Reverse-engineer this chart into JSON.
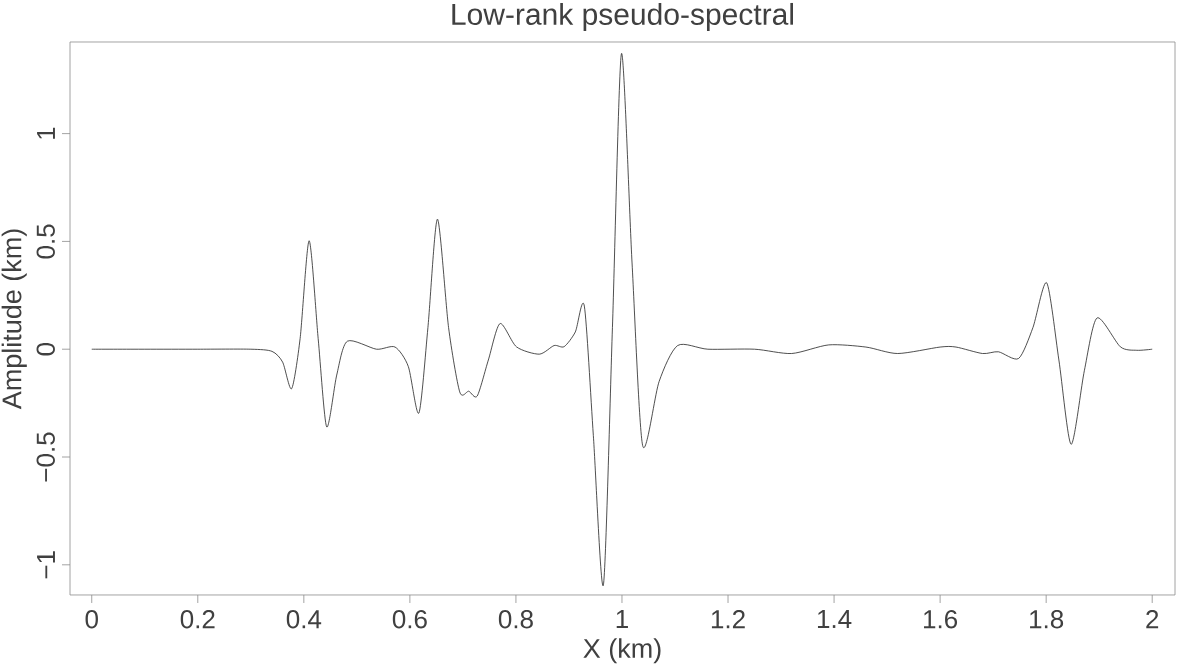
{
  "chart_data": {
    "type": "line",
    "title": "Low-rank pseudo-spectral",
    "xlabel": "X (km)",
    "ylabel": "Amplitude (km)",
    "color": "#222222",
    "marker": "none",
    "line_style": "solid",
    "xlim": [
      -0.041,
      2.043
    ],
    "ylim": [
      -1.14,
      1.425
    ],
    "xticks": [
      0,
      0.2,
      0.4,
      0.6,
      0.8,
      1,
      1.2,
      1.4,
      1.6,
      1.8,
      2
    ],
    "yticks": [
      {
        "value": -1,
        "label": "−1"
      },
      {
        "value": -0.5,
        "label": "−0.5"
      },
      0,
      0.5,
      1
    ],
    "x": [
      0,
      0.1,
      0.2,
      0.3,
      0.34,
      0.36,
      0.377,
      0.393,
      0.41,
      0.427,
      0.443,
      0.462,
      0.482,
      0.537,
      0.572,
      0.597,
      0.617,
      0.634,
      0.652,
      0.673,
      0.694,
      0.711,
      0.727,
      0.748,
      0.77,
      0.801,
      0.844,
      0.872,
      0.891,
      0.912,
      0.929,
      0.946,
      0.965,
      0.982,
      0.999,
      1.019,
      1.039,
      1.07,
      1.105,
      1.162,
      1.25,
      1.32,
      1.39,
      1.46,
      1.52,
      1.6,
      1.63,
      1.68,
      1.71,
      1.748,
      1.775,
      1.801,
      1.824,
      1.847,
      1.872,
      1.896,
      1.94,
      1.971,
      2.0
    ],
    "values": [
      0,
      0,
      0,
      0,
      -0.01,
      -0.06,
      -0.183,
      0.05,
      0.503,
      0.05,
      -0.36,
      -0.12,
      0.037,
      0,
      0.01,
      -0.08,
      -0.296,
      0.1,
      0.603,
      0.1,
      -0.198,
      -0.195,
      -0.217,
      -0.05,
      0.119,
      0.011,
      -0.023,
      0.017,
      0.012,
      0.08,
      0.2,
      -0.4,
      -1.093,
      0.1,
      1.371,
      0.4,
      -0.447,
      -0.15,
      0.017,
      0,
      0,
      -0.02,
      0.02,
      0.01,
      -0.02,
      0.01,
      0.01,
      -0.02,
      -0.012,
      -0.043,
      0.1,
      0.308,
      -0.05,
      -0.441,
      -0.1,
      0.145,
      0.011,
      -0.005,
      0
    ]
  }
}
